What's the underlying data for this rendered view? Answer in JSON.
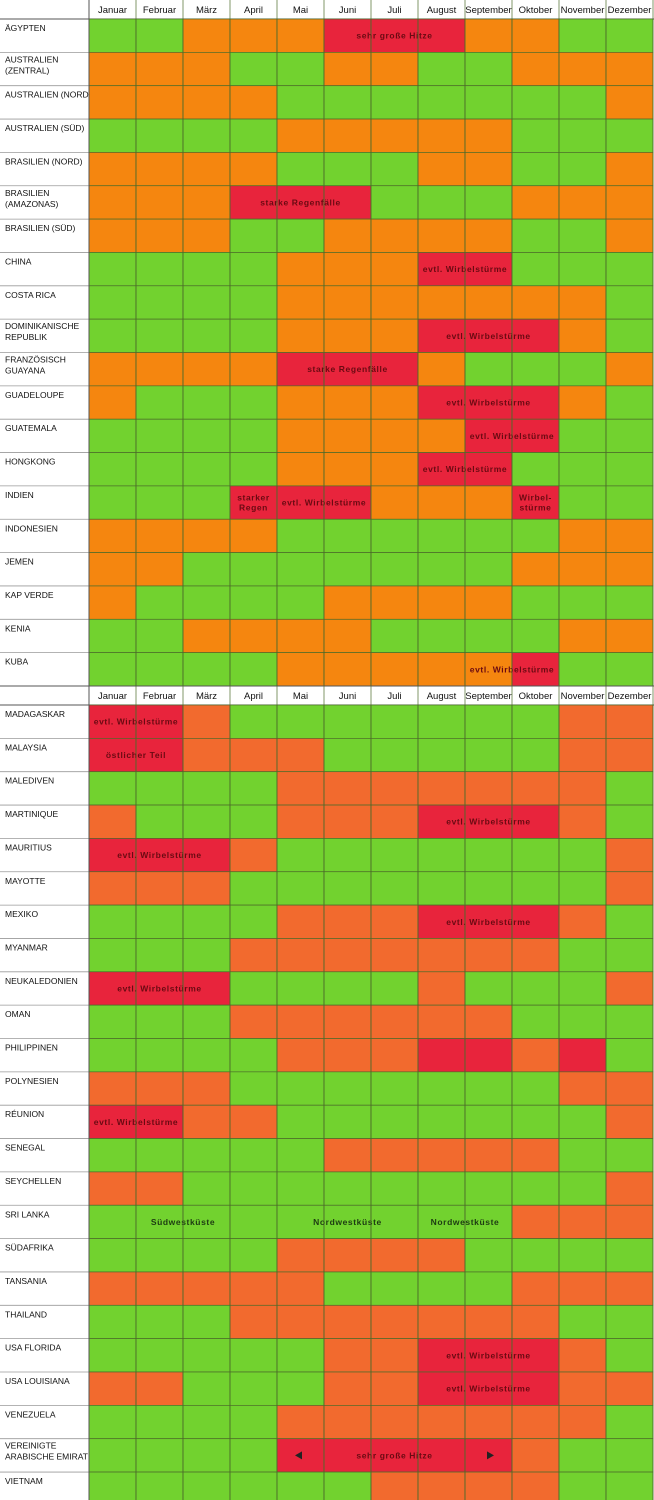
{
  "chart_data": [
    {
      "type": "heatmap",
      "title": "",
      "months": [
        "Januar",
        "Februar",
        "März",
        "April",
        "Mai",
        "Juni",
        "Juli",
        "August",
        "September",
        "Oktober",
        "November",
        "Dezember"
      ],
      "legend": {
        "G": "#72d22f",
        "O": "#f5860f",
        "R": "#e8243c"
      },
      "rows": [
        {
          "name": [
            "ÄGYPTEN"
          ],
          "cells": "GGOOORRROOGG",
          "notes": [
            {
              "text": [
                "sehr große Hitze"
              ],
              "from": 6,
              "to": 8
            }
          ]
        },
        {
          "name": [
            "AUSTRALIEN",
            "(ZENTRAL)"
          ],
          "cells": "OOOGGOOGGOOO",
          "notes": []
        },
        {
          "name": [
            "AUSTRALIEN (NORD)"
          ],
          "cells": "OOOOGGGGGGGO",
          "notes": []
        },
        {
          "name": [
            "AUSTRALIEN (SÜD)"
          ],
          "cells": "GGGGOOOOOGGG",
          "notes": []
        },
        {
          "name": [
            "BRASILIEN (NORD)"
          ],
          "cells": "OOOOGGGOOGGO",
          "notes": []
        },
        {
          "name": [
            "BRASILIEN",
            "(AMAZONAS)"
          ],
          "cells": "OOORRRGGGOOO",
          "notes": [
            {
              "text": [
                "starke Regenfälle"
              ],
              "from": 4,
              "to": 6
            }
          ]
        },
        {
          "name": [
            "BRASILIEN (SÜD)"
          ],
          "cells": "OOOGGOOOOGGO",
          "notes": []
        },
        {
          "name": [
            "CHINA"
          ],
          "cells": "GGGGOOORRGGG",
          "notes": [
            {
              "text": [
                "evtl. Wirbelstürme"
              ],
              "from": 8,
              "to": 9
            }
          ]
        },
        {
          "name": [
            "COSTA RICA"
          ],
          "cells": "GGGGOOOOOOOG",
          "notes": []
        },
        {
          "name": [
            "DOMINIKANISCHE",
            "REPUBLIK"
          ],
          "cells": "GGGGOOORRROG",
          "notes": [
            {
              "text": [
                "evtl. Wirbelstürme"
              ],
              "from": 8,
              "to": 10
            }
          ]
        },
        {
          "name": [
            "FRANZÖSISCH",
            "GUAYANA"
          ],
          "cells": "OOOORRROGGGO",
          "notes": [
            {
              "text": [
                "starke Regenfälle"
              ],
              "from": 5,
              "to": 7
            }
          ]
        },
        {
          "name": [
            "GUADELOUPE"
          ],
          "cells": "OGGGOOORRROG",
          "notes": [
            {
              "text": [
                "evtl. Wirbelstürme"
              ],
              "from": 8,
              "to": 10
            }
          ]
        },
        {
          "name": [
            "GUATEMALA"
          ],
          "cells": "GGGGOOOORRGG",
          "notes": [
            {
              "text": [
                "evtl. Wirbelstürme"
              ],
              "from": 9,
              "to": 10
            }
          ]
        },
        {
          "name": [
            "HONGKONG"
          ],
          "cells": "GGGGOOORRGGG",
          "notes": [
            {
              "text": [
                "evtl. Wirbelstürme"
              ],
              "from": 8,
              "to": 9
            }
          ]
        },
        {
          "name": [
            "INDIEN"
          ],
          "cells": "GGGRRROOORGG",
          "notes": [
            {
              "text": [
                "starker",
                "Regen"
              ],
              "from": 4,
              "to": 4
            },
            {
              "text": [
                "evtl. Wirbelstürme"
              ],
              "from": 5,
              "to": 6
            },
            {
              "text": [
                "Wirbel-",
                "stürme"
              ],
              "from": 10,
              "to": 10
            }
          ]
        },
        {
          "name": [
            "INDONESIEN"
          ],
          "cells": "OOOOGGGGGGOO",
          "notes": []
        },
        {
          "name": [
            "JEMEN"
          ],
          "cells": "OOGGGGGGGOOO",
          "notes": []
        },
        {
          "name": [
            "KAP VERDE"
          ],
          "cells": "OGGGGOOOOGGG",
          "notes": []
        },
        {
          "name": [
            "KENIA"
          ],
          "cells": "GGOOOOGGGGOO",
          "notes": []
        },
        {
          "name": [
            "KUBA"
          ],
          "cells": "GGGGOOOOORGG",
          "notes": [
            {
              "text": [
                "evtl. Wirbelstürme"
              ],
              "from": 9,
              "to": 10
            }
          ]
        }
      ]
    },
    {
      "type": "heatmap",
      "title": "",
      "months": [
        "Januar",
        "Februar",
        "März",
        "April",
        "Mai",
        "Juni",
        "Juli",
        "August",
        "September",
        "Oktober",
        "November",
        "Dezember"
      ],
      "legend": {
        "G": "#72d22f",
        "O": "#f26a2e",
        "R": "#e8243c"
      },
      "rows": [
        {
          "name": [
            "MADAGASKAR"
          ],
          "cells": "RROGGGGGGGOO",
          "notes": [
            {
              "text": [
                "evtl. Wirbelstürme"
              ],
              "from": 1,
              "to": 2
            }
          ]
        },
        {
          "name": [
            "MALAYSIA"
          ],
          "cells": "RROOOGGGGGOO",
          "notes": [
            {
              "text": [
                "östlicher Teil"
              ],
              "from": 1,
              "to": 2
            }
          ]
        },
        {
          "name": [
            "MALEDIVEN"
          ],
          "cells": "GGGGOOOOOOOG",
          "notes": []
        },
        {
          "name": [
            "MARTINIQUE"
          ],
          "cells": "OGGGOOORRROG",
          "notes": [
            {
              "text": [
                "evtl. Wirbelstürme"
              ],
              "from": 8,
              "to": 10
            }
          ]
        },
        {
          "name": [
            "MAURITIUS"
          ],
          "cells": "RRROGGGGGGGO",
          "notes": [
            {
              "text": [
                "evtl. Wirbelstürme"
              ],
              "from": 1,
              "to": 3
            }
          ]
        },
        {
          "name": [
            "MAYOTTE"
          ],
          "cells": "OOOGGGGGGGGO",
          "notes": []
        },
        {
          "name": [
            "MEXIKO"
          ],
          "cells": "GGGGOOORRROG",
          "notes": [
            {
              "text": [
                "evtl. Wirbelstürme"
              ],
              "from": 8,
              "to": 10
            }
          ]
        },
        {
          "name": [
            "MYANMAR"
          ],
          "cells": "GGGOOOOOOOGG",
          "notes": []
        },
        {
          "name": [
            "NEUKALEDONIEN"
          ],
          "cells": "RRRGGGGOGGGO",
          "notes": [
            {
              "text": [
                "evtl. Wirbelstürme"
              ],
              "from": 1,
              "to": 3
            }
          ]
        },
        {
          "name": [
            "OMAN"
          ],
          "cells": "GGGOOOOOOGGG",
          "notes": []
        },
        {
          "name": [
            "PHILIPPINEN"
          ],
          "cells": "GGGGOOORRORG",
          "notes": []
        },
        {
          "name": [
            "POLYNESIEN"
          ],
          "cells": "OOOGGGGGGGOO",
          "notes": []
        },
        {
          "name": [
            "RÉUNION"
          ],
          "cells": "RROOGGGGGGGO",
          "notes": [
            {
              "text": [
                "evtl. Wirbelstürme"
              ],
              "from": 1,
              "to": 2
            }
          ]
        },
        {
          "name": [
            "SENEGAL"
          ],
          "cells": "GGGGGOOOOOGG",
          "notes": []
        },
        {
          "name": [
            "SEYCHELLEN"
          ],
          "cells": "OOGGGGGGGGGO",
          "notes": []
        },
        {
          "name": [
            "SRI LANKA"
          ],
          "cells": "GGGGGGGGGOOO",
          "notes": [
            {
              "text": [
                "Südwestküste"
              ],
              "from": 1,
              "to": 4,
              "style": "plain"
            },
            {
              "text": [
                "Nordwestküste"
              ],
              "from": 5,
              "to": 7,
              "style": "plain"
            },
            {
              "text": [
                "Nordwestküste"
              ],
              "from": 8,
              "to": 9,
              "style": "plain"
            }
          ]
        },
        {
          "name": [
            "SÜDAFRIKA"
          ],
          "cells": "GGGGOOOOGGGG",
          "notes": []
        },
        {
          "name": [
            "TANSANIA"
          ],
          "cells": "OOOOOGGGGOOO",
          "notes": []
        },
        {
          "name": [
            "THAILAND"
          ],
          "cells": "GGGOOOOOOOGG",
          "notes": []
        },
        {
          "name": [
            "USA FLORIDA"
          ],
          "cells": "GGGGGOORRROG",
          "notes": [
            {
              "text": [
                "evtl. Wirbelstürme"
              ],
              "from": 8,
              "to": 10
            }
          ]
        },
        {
          "name": [
            "USA LOUISIANA"
          ],
          "cells": "OOGGGOORRROO",
          "notes": [
            {
              "text": [
                "evtl. Wirbelstürme"
              ],
              "from": 8,
              "to": 10
            }
          ]
        },
        {
          "name": [
            "VENEZUELA"
          ],
          "cells": "GGGGOOOOOOOG",
          "notes": []
        },
        {
          "name": [
            "VEREINIGTE",
            "ARABISCHE EMIRATE"
          ],
          "cells": "GGGGRRRRROGG",
          "notes": [
            {
              "text": [
                "sehr große Hitze"
              ],
              "from": 5,
              "to": 9,
              "arrows": true
            }
          ]
        },
        {
          "name": [
            "VIETNAM"
          ],
          "cells": "GGGGGGOOOOGG",
          "notes": []
        }
      ]
    }
  ]
}
